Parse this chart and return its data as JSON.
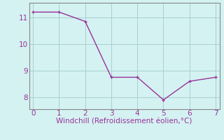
{
  "x": [
    0,
    1,
    2,
    3,
    4,
    5,
    6,
    7
  ],
  "y": [
    11.2,
    11.2,
    10.85,
    8.75,
    8.75,
    7.9,
    8.6,
    8.75
  ],
  "line_color": "#993399",
  "marker": "+",
  "marker_size": 3,
  "marker_linewidth": 1.0,
  "linewidth": 1.0,
  "bg_color": "#d4f2f2",
  "grid_color": "#aacece",
  "spine_color": "#888888",
  "xlabel": "Windchill (Refroidissement éolien,°C)",
  "xlabel_color": "#993399",
  "xlabel_fontsize": 7.5,
  "tick_color": "#993399",
  "tick_fontsize": 7.5,
  "xlim": [
    -0.15,
    7.15
  ],
  "ylim": [
    7.55,
    11.55
  ],
  "yticks": [
    8,
    9,
    10,
    11
  ],
  "xticks": [
    0,
    1,
    2,
    3,
    4,
    5,
    6,
    7
  ]
}
